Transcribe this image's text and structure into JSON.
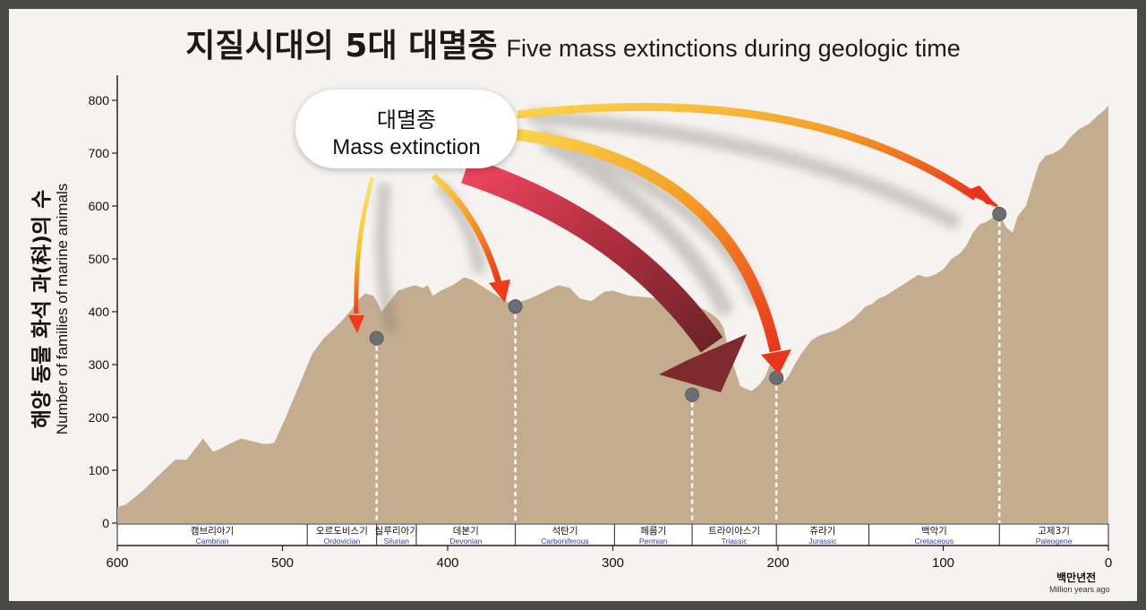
{
  "title": {
    "ko": "지질시대의 5대 대멸종",
    "en": "Five mass extinctions during geologic time"
  },
  "ylabel": {
    "ko": "해양 동물 화석 과(科)의 수",
    "en": "Number of families of marine animals"
  },
  "xunit": {
    "ko": "백만년전",
    "en": "Million years ago"
  },
  "callout": {
    "ko": "대멸종",
    "en": "Mass extinction"
  },
  "colors": {
    "frame": "#4a4a48",
    "background": "#f5f2ef",
    "area": "#c4ad8e",
    "marker": "#6b6f75",
    "arrow_yellow": "#f7d23a",
    "arrow_orange": "#ef5a1e",
    "arrow_red": "#e83a52",
    "arrow_dark_red": "#7e2a2f"
  },
  "chart_data": {
    "type": "area",
    "x_direction": "reversed",
    "xlim": [
      600,
      0
    ],
    "ylim": [
      0,
      800
    ],
    "xticks": [
      600,
      500,
      400,
      300,
      200,
      100,
      0
    ],
    "yticks": [
      0,
      100,
      200,
      300,
      400,
      500,
      600,
      700,
      800
    ],
    "series": [
      {
        "x": [
          600,
          595,
          585,
          575,
          565,
          558,
          553,
          548,
          542,
          538,
          532,
          525,
          518,
          512,
          508,
          505,
          498,
          490,
          482,
          475,
          468,
          462,
          458,
          455,
          450,
          445,
          443,
          440,
          435,
          430,
          425,
          420,
          415,
          412,
          409,
          404,
          397,
          390,
          385,
          380,
          375,
          370,
          365,
          362,
          359,
          355,
          350,
          340,
          333,
          326,
          320,
          313,
          305,
          300,
          295,
          290,
          282,
          275,
          268,
          260,
          255,
          250,
          245,
          240,
          236,
          233,
          230,
          227,
          225,
          223,
          220,
          216,
          212,
          208,
          205,
          202,
          200,
          198,
          196,
          193,
          190,
          186,
          180,
          175,
          170,
          165,
          160,
          155,
          150,
          147,
          143,
          139,
          135,
          130,
          125,
          120,
          115,
          110,
          105,
          100,
          95,
          90,
          86,
          82,
          78,
          74,
          70,
          67,
          65,
          62,
          58,
          55,
          50,
          46,
          42,
          38,
          33,
          28,
          23,
          18,
          12,
          7,
          3,
          0
        ],
        "y": [
          30,
          35,
          60,
          90,
          120,
          120,
          140,
          160,
          135,
          140,
          150,
          160,
          155,
          150,
          150,
          152,
          200,
          260,
          320,
          350,
          370,
          390,
          405,
          420,
          435,
          430,
          420,
          400,
          420,
          440,
          445,
          450,
          445,
          450,
          430,
          440,
          450,
          465,
          460,
          450,
          440,
          430,
          420,
          418,
          415,
          420,
          425,
          440,
          450,
          445,
          425,
          420,
          438,
          440,
          435,
          430,
          428,
          426,
          425,
          425,
          420,
          410,
          405,
          395,
          385,
          370,
          330,
          300,
          280,
          260,
          255,
          250,
          260,
          275,
          300,
          310,
          295,
          280,
          268,
          282,
          300,
          320,
          345,
          355,
          360,
          365,
          375,
          385,
          400,
          410,
          415,
          425,
          430,
          440,
          450,
          460,
          470,
          465,
          470,
          480,
          500,
          510,
          525,
          550,
          565,
          570,
          578,
          582,
          580,
          560,
          550,
          580,
          600,
          640,
          680,
          695,
          700,
          710,
          730,
          745,
          755,
          770,
          780,
          790
        ]
      }
    ],
    "extinctions": [
      {
        "x": 443,
        "y": 350
      },
      {
        "x": 359,
        "y": 410
      },
      {
        "x": 252,
        "y": 243
      },
      {
        "x": 201,
        "y": 275
      },
      {
        "x": 66,
        "y": 585
      }
    ],
    "periods": [
      {
        "ko": "캠브리아기",
        "en": "Cambrian",
        "start": 600,
        "end": 485
      },
      {
        "ko": "오르도비스기",
        "en": "Ordovician",
        "start": 485,
        "end": 443
      },
      {
        "ko": "실루리아기",
        "en": "Silurian",
        "start": 443,
        "end": 419
      },
      {
        "ko": "데본기",
        "en": "Devonian",
        "start": 419,
        "end": 359
      },
      {
        "ko": "석탄기",
        "en": "Carboniferous",
        "start": 359,
        "end": 299
      },
      {
        "ko": "페름기",
        "en": "Permian",
        "start": 299,
        "end": 252
      },
      {
        "ko": "트라이아스기",
        "en": "Triassic",
        "start": 252,
        "end": 201
      },
      {
        "ko": "쥬라기",
        "en": "Jurassic",
        "start": 201,
        "end": 145
      },
      {
        "ko": "백악기",
        "en": "Cretaceous",
        "start": 145,
        "end": 66
      },
      {
        "ko": "고제3기",
        "en": "Paleogene",
        "start": 66,
        "end": 0
      }
    ]
  }
}
